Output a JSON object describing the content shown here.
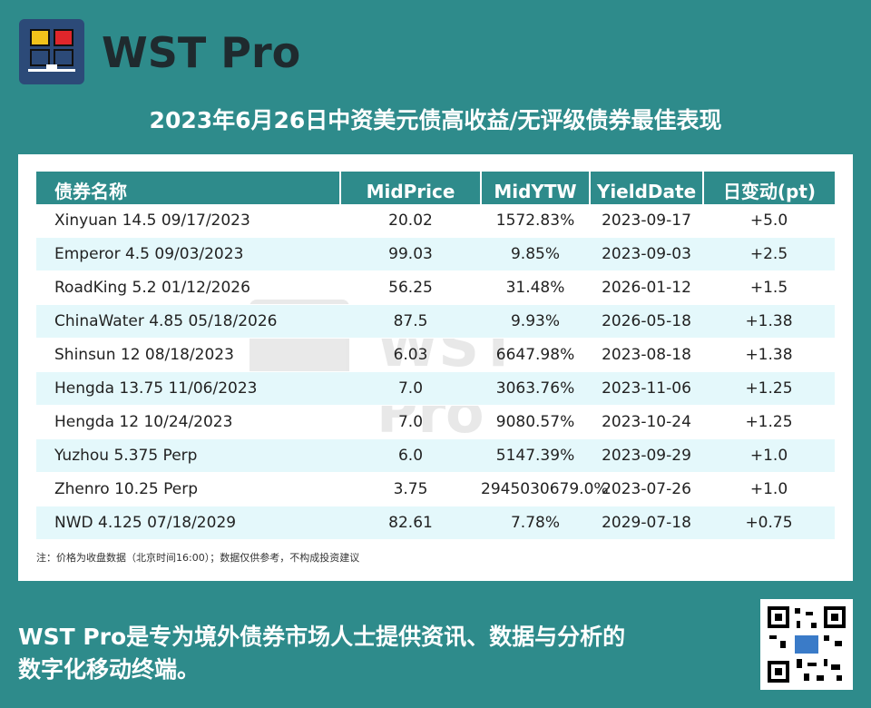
{
  "brand": {
    "name": "WST Pro",
    "logo_colors": [
      "#f2c31b",
      "#e0262b",
      "#2c4a78"
    ]
  },
  "title": "2023年6月26日中资美元债高收益/无评级债券最佳表现",
  "table": {
    "headers": [
      "债券名称",
      "MidPrice",
      "MidYTW",
      "YieldDate",
      "日变动(pt)"
    ],
    "rows": [
      [
        "Xinyuan 14.5 09/17/2023",
        "20.02",
        "1572.83%",
        "2023-09-17",
        "+5.0"
      ],
      [
        "Emperor 4.5 09/03/2023",
        "99.03",
        "9.85%",
        "2023-09-03",
        "+2.5"
      ],
      [
        "RoadKing 5.2 01/12/2026",
        "56.25",
        "31.48%",
        "2026-01-12",
        "+1.5"
      ],
      [
        "ChinaWater 4.85 05/18/2026",
        "87.5",
        "9.93%",
        "2026-05-18",
        "+1.38"
      ],
      [
        "Shinsun 12 08/18/2023",
        "6.03",
        "6647.98%",
        "2023-08-18",
        "+1.38"
      ],
      [
        "Hengda 13.75 11/06/2023",
        "7.0",
        "3063.76%",
        "2023-11-06",
        "+1.25"
      ],
      [
        "Hengda 12 10/24/2023",
        "7.0",
        "9080.57%",
        "2023-10-24",
        "+1.25"
      ],
      [
        "Yuzhou 5.375 Perp",
        "6.0",
        "5147.39%",
        "2023-09-29",
        "+1.0"
      ],
      [
        "Zhenro 10.25 Perp",
        "3.75",
        "2945030679.0%",
        "2023-07-26",
        "+1.0"
      ],
      [
        "NWD 4.125 07/18/2029",
        "82.61",
        "7.78%",
        "2029-07-18",
        "+0.75"
      ]
    ]
  },
  "note": "注：价格为收盘数据（北京时间16:00）；数据仅供参考，不构成投资建议",
  "footer": {
    "line1": "WST Pro是专为境外债券市场人士提供资讯、数据与分析的",
    "line2": "数字化移动终端。"
  },
  "colors": {
    "background": "#2e8b8b",
    "header": "#2e8b8b",
    "alt_row": "#e4f8fb"
  }
}
